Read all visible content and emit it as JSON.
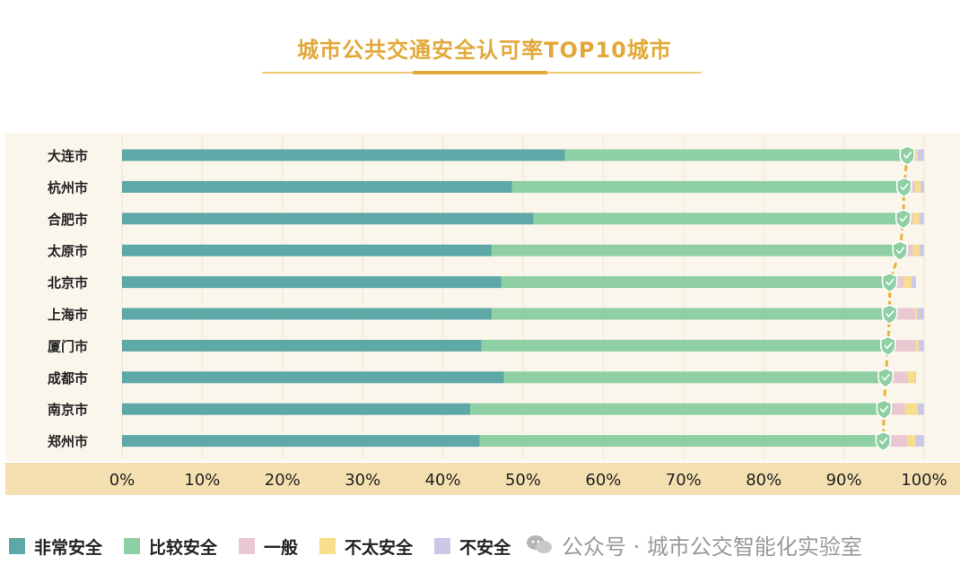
{
  "chart_data": {
    "type": "bar",
    "stacked": true,
    "orientation": "horizontal",
    "title": "城市公共交通安全认可率TOP10城市",
    "categories": [
      "大连市",
      "杭州市",
      "合肥市",
      "太原市",
      "北京市",
      "上海市",
      "厦门市",
      "成都市",
      "南京市",
      "郑州市"
    ],
    "series": [
      {
        "name": "非常安全",
        "color": "#5fa8a8",
        "values": [
          55.2,
          48.6,
          51.3,
          46.1,
          47.3,
          46.1,
          44.8,
          47.6,
          43.4,
          44.6
        ]
      },
      {
        "name": "比较安全",
        "color": "#8fcfa4",
        "values": [
          42.7,
          48.9,
          46.1,
          50.9,
          48.4,
          49.6,
          50.7,
          47.6,
          51.6,
          50.3
        ]
      },
      {
        "name": "一般",
        "color": "#e9c8d2",
        "values": [
          1.1,
          1.4,
          1.2,
          1.6,
          1.8,
          3.2,
          3.5,
          2.8,
          2.6,
          3.0
        ]
      },
      {
        "name": "不太安全",
        "color": "#f7de8c",
        "values": [
          0.2,
          0.7,
          0.8,
          0.8,
          0.9,
          0.2,
          0.3,
          0.9,
          1.6,
          1.0
        ]
      },
      {
        "name": "不安全",
        "color": "#ccc9e6",
        "values": [
          0.8,
          0.4,
          0.6,
          0.6,
          0.6,
          0.9,
          0.7,
          0.1,
          0.8,
          1.1
        ]
      }
    ],
    "xticks": [
      "0%",
      "10%",
      "20%",
      "30%",
      "40%",
      "50%",
      "60%",
      "70%",
      "80%",
      "90%",
      "100%"
    ],
    "xlim": [
      0,
      100
    ],
    "grid": true,
    "legend_position": "bottom-left"
  },
  "watermark": "公众号 · 城市公交智能化实验室",
  "colors": {
    "title": "#e2a93a",
    "panel_bg": "#fbf6ec",
    "axis_bg": "#f3dfb0",
    "trend_line": "#e8b23a",
    "shield": "#8fcfa4"
  }
}
